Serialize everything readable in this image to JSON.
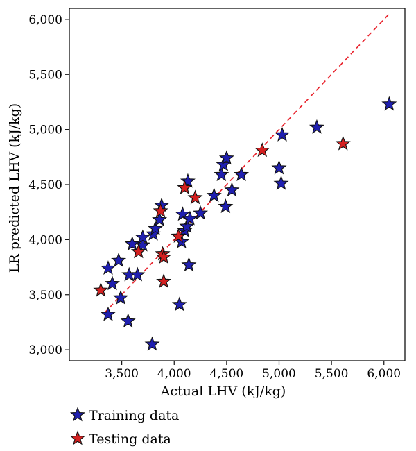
{
  "chart_data": {
    "type": "scatter",
    "xlabel": "Actual LHV  (kJ/kg)",
    "ylabel": "LR predicted LHV  (kJ/kg)",
    "xlim": [
      3000,
      6200
    ],
    "ylim": [
      2900,
      6100
    ],
    "x_ticks": [
      3500,
      4000,
      4500,
      5000,
      5500,
      6000
    ],
    "y_ticks": [
      3000,
      3500,
      4000,
      4500,
      5000,
      5500,
      6000
    ],
    "x_tick_labels": [
      "3,500",
      "4,000",
      "4,500",
      "5,000",
      "5,500",
      "6,000"
    ],
    "y_tick_labels": [
      "3,000",
      "3,500",
      "4,000",
      "4,500",
      "5,000",
      "5,500",
      "6,000"
    ],
    "grid": false,
    "legend_position": "bottom-left, below plot",
    "reference_line": {
      "style": "dashed",
      "color": "#e8202a",
      "x": [
        3330,
        6050
      ],
      "y": [
        3330,
        6050
      ]
    },
    "series": [
      {
        "name": "Training data",
        "color": "#1f1fb0",
        "marker": "star",
        "points": [
          [
            3370,
            3740
          ],
          [
            3370,
            3320
          ],
          [
            3410,
            3600
          ],
          [
            3470,
            3810
          ],
          [
            3490,
            3470
          ],
          [
            3560,
            3260
          ],
          [
            3570,
            3680
          ],
          [
            3600,
            3960
          ],
          [
            3650,
            3680
          ],
          [
            3700,
            3950
          ],
          [
            3700,
            4020
          ],
          [
            3790,
            3050
          ],
          [
            3800,
            4050
          ],
          [
            3820,
            4100
          ],
          [
            3860,
            4180
          ],
          [
            3880,
            4310
          ],
          [
            4050,
            3410
          ],
          [
            4070,
            3980
          ],
          [
            4080,
            4230
          ],
          [
            4100,
            4080
          ],
          [
            4120,
            4120
          ],
          [
            4130,
            4530
          ],
          [
            4140,
            3770
          ],
          [
            4150,
            4190
          ],
          [
            4250,
            4240
          ],
          [
            4380,
            4400
          ],
          [
            4450,
            4590
          ],
          [
            4470,
            4680
          ],
          [
            4490,
            4300
          ],
          [
            4500,
            4740
          ],
          [
            4550,
            4450
          ],
          [
            4640,
            4590
          ],
          [
            5000,
            4650
          ],
          [
            5020,
            4510
          ],
          [
            5030,
            4950
          ],
          [
            5360,
            5020
          ],
          [
            6050,
            5230
          ]
        ]
      },
      {
        "name": "Testing data",
        "color": "#d42020",
        "marker": "star",
        "points": [
          [
            3300,
            3540
          ],
          [
            3660,
            3890
          ],
          [
            3870,
            4260
          ],
          [
            3890,
            3870
          ],
          [
            3900,
            3840
          ],
          [
            3900,
            3620
          ],
          [
            4040,
            4030
          ],
          [
            4100,
            4470
          ],
          [
            4200,
            4380
          ],
          [
            4840,
            4810
          ],
          [
            5610,
            4870
          ]
        ]
      }
    ]
  }
}
